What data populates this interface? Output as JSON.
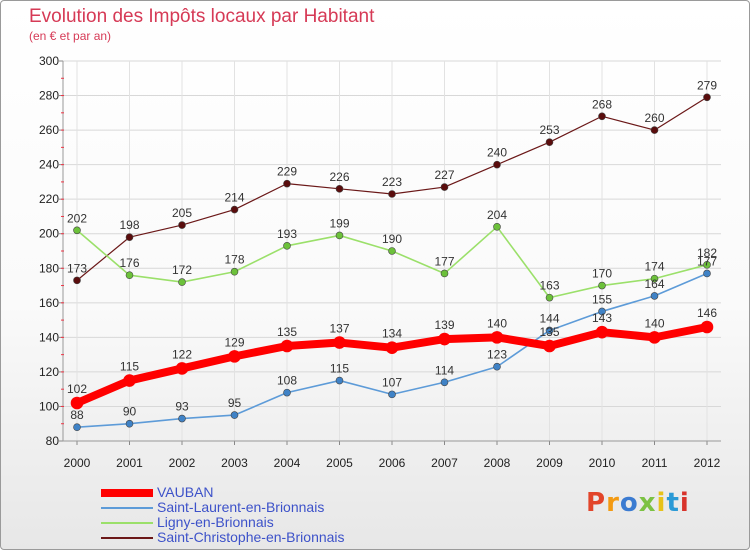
{
  "header": {
    "title": "Evolution des Impôts locaux par Habitant",
    "subtitle": "(en € et par an)"
  },
  "logo": {
    "text": "Proxiti",
    "colors": [
      "#e2452a",
      "#f39a12",
      "#3b7bd1",
      "#7cc243",
      "#e7c21a",
      "#2b9ad6",
      "#d8332b"
    ]
  },
  "chart_data": {
    "type": "line",
    "title": "Evolution des Impôts locaux par Habitant",
    "subtitle": "(en € et par an)",
    "x": [
      "2000",
      "2001",
      "2002",
      "2003",
      "2004",
      "2005",
      "2006",
      "2007",
      "2008",
      "2009",
      "2010",
      "2011",
      "2012"
    ],
    "ylim": [
      80,
      300
    ],
    "yticks": [
      80,
      100,
      120,
      140,
      160,
      180,
      200,
      220,
      240,
      260,
      280,
      300
    ],
    "legend_position": "bottom-left",
    "series": [
      {
        "name": "Saint-Christophe-en-Brionnais",
        "color": "#6b1818",
        "marker": "#5a0d0d",
        "width": 1.2,
        "values": [
          173,
          198,
          205,
          214,
          229,
          226,
          223,
          227,
          240,
          253,
          268,
          260,
          279
        ],
        "labels": [
          "173",
          "198",
          "205",
          "214",
          "229",
          "226",
          "223",
          "227",
          "240",
          "253",
          "268",
          "260",
          "279"
        ]
      },
      {
        "name": "Ligny-en-Brionnais",
        "color": "#9be06a",
        "marker": "#6cc13a",
        "width": 1.6,
        "values": [
          202,
          176,
          172,
          178,
          193,
          199,
          190,
          177,
          204,
          163,
          170,
          174,
          182
        ],
        "labels": [
          "202",
          "176",
          "172",
          "178",
          "193",
          "199",
          "190",
          "177",
          "204",
          "163",
          "170",
          "174",
          "182"
        ]
      },
      {
        "name": "Saint-Laurent-en-Brionnais",
        "color": "#5d9bd8",
        "marker": "#3f82c6",
        "width": 1.6,
        "values": [
          88,
          90,
          93,
          95,
          108,
          115,
          107,
          114,
          123,
          144,
          155,
          164,
          177
        ],
        "labels": [
          "88",
          "90",
          "93",
          "95",
          "108",
          "115",
          "107",
          "114",
          "123",
          "144",
          "155",
          "164",
          "177"
        ]
      },
      {
        "name": "VAUBAN",
        "color": "#ff0000",
        "marker": "#ff0000",
        "width": 8,
        "values": [
          102,
          115,
          122,
          129,
          135,
          137,
          134,
          139,
          140,
          135,
          143,
          140,
          146
        ],
        "labels": [
          "102",
          "115",
          "122",
          "129",
          "135",
          "137",
          "134",
          "139",
          "140",
          "135",
          "143",
          "140",
          "146"
        ]
      }
    ]
  },
  "legend": [
    {
      "label": "VAUBAN",
      "color": "#ff0000",
      "width": 8
    },
    {
      "label": "Saint-Laurent-en-Brionnais",
      "color": "#5d9bd8",
      "width": 2
    },
    {
      "label": "Ligny-en-Brionnais",
      "color": "#9be06a",
      "width": 2
    },
    {
      "label": "Saint-Christophe-en-Brionnais",
      "color": "#6b1818",
      "width": 2
    }
  ]
}
